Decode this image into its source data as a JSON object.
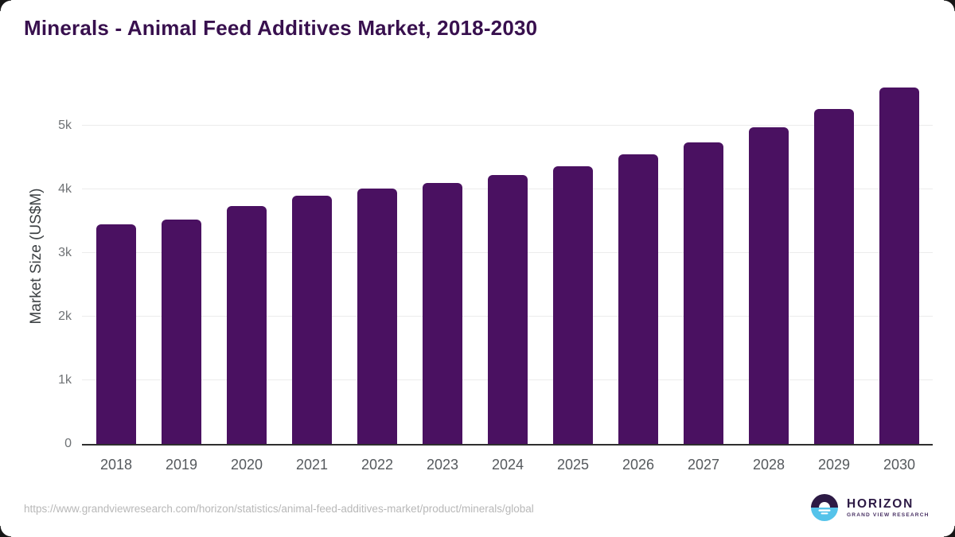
{
  "page": {
    "title": "Minerals - Animal Feed Additives Market, 2018-2030",
    "source_url": "https://www.grandviewresearch.com/horizon/statistics/animal-feed-additives-market/product/minerals/global"
  },
  "logo": {
    "name": "HORIZON",
    "subtitle": "GRAND VIEW RESEARCH",
    "icon": "horizon-sun-circle-icon",
    "purple": "#2d1a45",
    "blue": "#55c3ea",
    "subtitle_color": "#483063"
  },
  "colors": {
    "title": "#38104e",
    "bar": "#4a1161",
    "axis_label": "#3e4245",
    "tick_label": "#6f7275",
    "year_label": "#55595d",
    "gridline": "#ececec",
    "axis_line": "#2f2f2f",
    "url_text": "#b8b8b8",
    "corner": "#161616"
  },
  "chart_data": {
    "type": "bar",
    "title": "Minerals - Animal Feed Additives Market, 2018-2030",
    "categories": [
      "2018",
      "2019",
      "2020",
      "2021",
      "2022",
      "2023",
      "2024",
      "2025",
      "2026",
      "2027",
      "2028",
      "2029",
      "2030"
    ],
    "values": [
      3450,
      3530,
      3735,
      3905,
      4010,
      4100,
      4225,
      4365,
      4545,
      4740,
      4980,
      5260,
      5600
    ],
    "unit": "US$M",
    "xlabel": "",
    "ylabel": "Market Size (US$M)",
    "yticks": [
      "0",
      "1k",
      "2k",
      "3k",
      "4k",
      "5k"
    ],
    "ytick_values": [
      0,
      1000,
      2000,
      3000,
      4000,
      5000
    ],
    "ylim": [
      0,
      5787
    ],
    "grid": true,
    "legend": false,
    "bar_color": "#4a1161",
    "bar_corner_radius": 6
  }
}
